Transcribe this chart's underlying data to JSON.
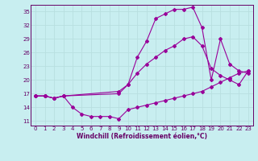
{
  "xlabel": "Windchill (Refroidissement éolien,°C)",
  "bg_color": "#c8eef0",
  "line_color": "#990099",
  "grid_color": "#b8dfe0",
  "axis_color": "#660066",
  "text_color": "#660066",
  "ylim": [
    10.0,
    36.5
  ],
  "xlim": [
    -0.5,
    23.5
  ],
  "yticks": [
    11,
    14,
    17,
    20,
    23,
    26,
    29,
    32,
    35
  ],
  "xticks": [
    0,
    1,
    2,
    3,
    4,
    5,
    6,
    7,
    8,
    9,
    10,
    11,
    12,
    13,
    14,
    15,
    16,
    17,
    18,
    19,
    20,
    21,
    22,
    23
  ],
  "line1_x": [
    0,
    1,
    2,
    3,
    4,
    5,
    6,
    7,
    8,
    9,
    10,
    11,
    12,
    13,
    14,
    15,
    16,
    17,
    18,
    19,
    20,
    21,
    22,
    23
  ],
  "line1_y": [
    16.5,
    16.5,
    16.0,
    16.5,
    14.0,
    12.5,
    12.0,
    12.0,
    12.0,
    11.5,
    13.5,
    14.0,
    14.5,
    15.0,
    15.5,
    16.0,
    16.5,
    17.0,
    17.5,
    18.5,
    19.5,
    20.5,
    21.5,
    22.0
  ],
  "line2_x": [
    0,
    1,
    2,
    3,
    9,
    10,
    11,
    12,
    13,
    14,
    15,
    16,
    17,
    18,
    19,
    20,
    21,
    22,
    23
  ],
  "line2_y": [
    16.5,
    16.5,
    16.0,
    16.5,
    17.0,
    19.0,
    21.5,
    23.5,
    25.0,
    26.5,
    27.5,
    29.0,
    29.5,
    27.5,
    22.5,
    21.0,
    20.0,
    19.0,
    22.0
  ],
  "line3_x": [
    0,
    1,
    2,
    3,
    9,
    10,
    11,
    12,
    13,
    14,
    15,
    16,
    17,
    18,
    19,
    20,
    21,
    22,
    23
  ],
  "line3_y": [
    16.5,
    16.5,
    16.0,
    16.5,
    17.5,
    19.0,
    25.0,
    28.5,
    33.5,
    34.5,
    35.5,
    35.5,
    36.0,
    31.5,
    20.0,
    29.0,
    23.5,
    22.0,
    21.5
  ]
}
